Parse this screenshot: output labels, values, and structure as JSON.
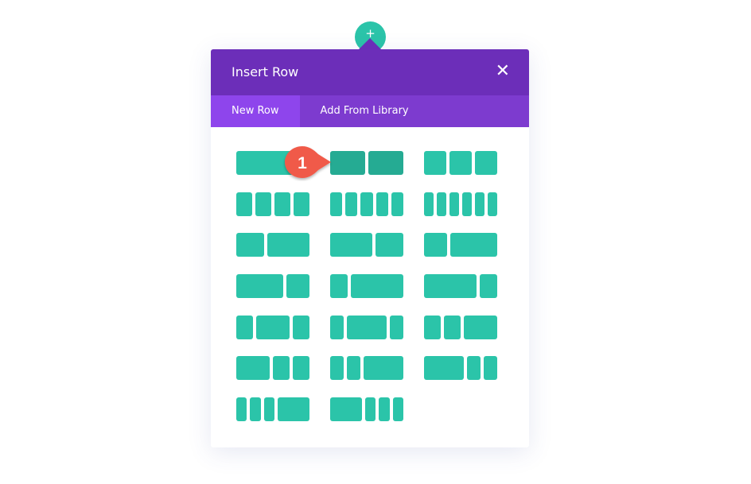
{
  "add_button": {
    "icon": "plus-icon",
    "symbol": "+"
  },
  "modal": {
    "title": "Insert Row",
    "close_symbol": "✕",
    "tabs": [
      {
        "label": "New Row",
        "active": true
      },
      {
        "label": "Add From Library",
        "active": false
      }
    ],
    "hovered_layout_index": 1,
    "layouts": [
      [
        "1"
      ],
      [
        "1/2",
        "1/2"
      ],
      [
        "1/3",
        "1/3",
        "1/3"
      ],
      [
        "1/4",
        "1/4",
        "1/4",
        "1/4"
      ],
      [
        "1/5",
        "1/5",
        "1/5",
        "1/5",
        "1/5"
      ],
      [
        "1/6",
        "1/6",
        "1/6",
        "1/6",
        "1/6",
        "1/6"
      ],
      [
        "2/5",
        "3/5"
      ],
      [
        "3/5",
        "2/5"
      ],
      [
        "1/3",
        "2/3"
      ],
      [
        "2/3",
        "1/3"
      ],
      [
        "1/4",
        "3/4"
      ],
      [
        "3/4",
        "1/4"
      ],
      [
        "1/4",
        "1/2",
        "1/4"
      ],
      [
        "1/5",
        "3/5",
        "1/5"
      ],
      [
        "1/4",
        "1/4",
        "1/2"
      ],
      [
        "1/2",
        "1/4",
        "1/4"
      ],
      [
        "1/5",
        "1/5",
        "3/5"
      ],
      [
        "3/5",
        "1/5",
        "1/5"
      ],
      [
        "1/6",
        "1/6",
        "1/6",
        "1/2"
      ],
      [
        "1/2",
        "1/6",
        "1/6",
        "1/6"
      ]
    ]
  },
  "annotation": {
    "label": "1",
    "color": "#f05a4a"
  },
  "colors": {
    "header": "#6c2eb9",
    "tabs": "#7d3bcf",
    "active_tab": "#8e45ec",
    "column": "#2bc4a9",
    "column_hover": "#25ab93"
  }
}
